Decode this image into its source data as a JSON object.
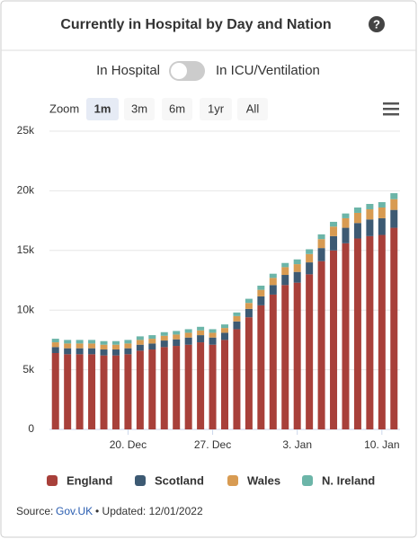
{
  "chart_data": {
    "type": "stacked_bar",
    "title": "Currently in Hospital by Day and Nation",
    "toggle_left": "In Hospital",
    "toggle_right": "In ICU/Ventilation",
    "zoom_label": "Zoom",
    "zoom_options": [
      "1m",
      "3m",
      "6m",
      "1yr",
      "All"
    ],
    "zoom_selected": "1m",
    "categories": [
      null,
      null,
      null,
      null,
      null,
      null,
      "20. Dec",
      null,
      null,
      null,
      null,
      null,
      null,
      "27. Dec",
      null,
      null,
      null,
      null,
      null,
      null,
      "3. Jan",
      null,
      null,
      null,
      null,
      null,
      null,
      "10. Jan",
      null
    ],
    "series": [
      {
        "name": "England",
        "color": "#a8403a",
        "values": [
          6400,
          6300,
          6300,
          6300,
          6200,
          6200,
          6300,
          6600,
          6700,
          6900,
          7000,
          7100,
          7300,
          7100,
          7500,
          8400,
          9400,
          10400,
          11300,
          12100,
          12300,
          13000,
          14100,
          15000,
          15600,
          16000,
          16200,
          16300,
          16900
        ]
      },
      {
        "name": "Scotland",
        "color": "#3d5a73",
        "values": [
          500,
          500,
          500,
          500,
          500,
          500,
          500,
          500,
          500,
          550,
          550,
          600,
          600,
          600,
          600,
          650,
          700,
          750,
          800,
          850,
          900,
          1000,
          1100,
          1200,
          1300,
          1300,
          1400,
          1400,
          1500
        ]
      },
      {
        "name": "Wales",
        "color": "#d89b52",
        "values": [
          400,
          400,
          400,
          400,
          400,
          400,
          400,
          400,
          400,
          400,
          400,
          400,
          400,
          400,
          400,
          450,
          500,
          550,
          600,
          650,
          650,
          700,
          750,
          800,
          800,
          850,
          850,
          900,
          900
        ]
      },
      {
        "name": "N. Ireland",
        "color": "#6cb5a8",
        "values": [
          300,
          300,
          300,
          300,
          300,
          300,
          300,
          300,
          300,
          300,
          300,
          300,
          300,
          300,
          300,
          300,
          350,
          350,
          350,
          350,
          400,
          400,
          400,
          400,
          400,
          450,
          450,
          450,
          500
        ]
      }
    ],
    "ylim": [
      0,
      25000
    ],
    "yticks": [
      0,
      {
        "value": 5000,
        "label": "5k"
      },
      {
        "value": 10000,
        "label": "10k"
      },
      {
        "value": 15000,
        "label": "15k"
      },
      {
        "value": 20000,
        "label": "20k"
      },
      {
        "value": 25000,
        "label": "25k"
      }
    ],
    "grid": true,
    "source_prefix": "Source:",
    "source_link": "Gov.UK",
    "updated": "• Updated: 12/01/2022"
  }
}
